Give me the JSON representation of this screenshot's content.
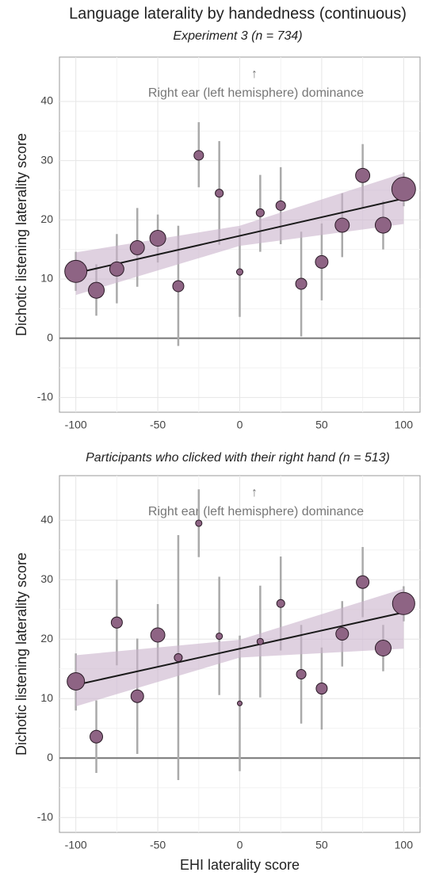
{
  "chart_data": [
    {
      "type": "scatter",
      "title": "Language laterality by handedness (continuous)",
      "subtitle": "Experiment 3 (n = 734)",
      "ylabel": "Dichotic listening laterality score",
      "annotation": "Right ear (left hemisphere) dominance",
      "annotation_arrow": "↑",
      "x": [
        -100,
        -87.5,
        -75,
        -62.5,
        -50,
        -37.5,
        -25,
        -12.5,
        0,
        12.5,
        25,
        37.5,
        50,
        62.5,
        75,
        87.5,
        100
      ],
      "values": [
        11.3,
        8.1,
        11.7,
        15.3,
        16.9,
        8.8,
        30.9,
        24.5,
        11.2,
        21.2,
        22.4,
        9.2,
        12.9,
        19.1,
        27.5,
        19.1,
        25.2
      ],
      "lower": [
        8,
        3.8,
        5.9,
        8.7,
        12.8,
        -1.3,
        25.5,
        15.8,
        3.6,
        14.6,
        15.9,
        0.3,
        6.4,
        13.7,
        22.1,
        15,
        22.3
      ],
      "upper": [
        14.6,
        12.5,
        17.6,
        22,
        20.9,
        19,
        36.5,
        33.3,
        18.5,
        27.6,
        28.9,
        18,
        19.4,
        24.5,
        32.8,
        23.2,
        28
      ],
      "sizes": [
        107,
        55,
        44,
        44,
        55,
        27,
        20,
        14,
        9,
        14,
        20,
        27,
        35,
        44,
        44,
        55,
        123
      ],
      "color": "#8e6484",
      "fit": {
        "x": [
          -100,
          100
        ],
        "values": [
          11,
          23.6
        ],
        "band_x": [
          -100,
          0,
          100
        ],
        "band_lower": [
          7.3,
          15.6,
          19.3
        ],
        "band_upper": [
          14.5,
          19,
          27.9
        ],
        "color": "#1a1a1a",
        "band_color": "#c9b3cc"
      },
      "hline": 0,
      "xlim": [
        -110,
        110
      ],
      "ylim": [
        -12.5,
        47.5
      ],
      "xticks": [
        -100,
        -50,
        0,
        50,
        100
      ],
      "yticks": [
        -10,
        0,
        10,
        20,
        30,
        40
      ],
      "grid": true
    },
    {
      "type": "scatter",
      "title": "Participants who clicked with their right hand (n = 513)",
      "ylabel": "Dichotic listening laterality score",
      "xlabel": "EHI laterality score",
      "annotation": "Right ear (left hemisphere) dominance",
      "annotation_arrow": "↑",
      "x": [
        -100,
        -87.5,
        -75,
        -62.5,
        -50,
        -37.5,
        -25,
        -12.5,
        0,
        12.5,
        25,
        37.5,
        50,
        62.5,
        75,
        87.5,
        100
      ],
      "values": [
        12.9,
        3.6,
        22.8,
        10.4,
        20.7,
        16.9,
        39.5,
        20.5,
        9.2,
        19.6,
        26,
        14.1,
        11.7,
        20.9,
        29.6,
        18.5,
        26
      ],
      "lower": [
        8,
        -2.5,
        15.6,
        0.7,
        15.5,
        -3.7,
        33.8,
        10.6,
        -2.2,
        10.2,
        18.1,
        5.8,
        4.8,
        15.4,
        23.7,
        14.6,
        23
      ],
      "upper": [
        17.6,
        9.7,
        30,
        20.1,
        25.9,
        37.5,
        45.2,
        30.5,
        20.6,
        29,
        33.9,
        22.4,
        18.6,
        26.4,
        35.5,
        22.4,
        28.9
      ],
      "sizes": [
        66,
        35,
        27,
        35,
        44,
        14,
        9,
        9,
        5,
        9,
        14,
        20,
        27,
        35,
        35,
        55,
        108
      ],
      "color": "#8e6484",
      "fit": {
        "x": [
          -100,
          100
        ],
        "values": [
          12.3,
          24.5
        ],
        "band_x": [
          -100,
          0,
          100
        ],
        "band_lower": [
          8.7,
          16.9,
          18.4
        ],
        "band_upper": [
          17.3,
          19.9,
          28.5
        ],
        "color": "#1a1a1a",
        "band_color": "#c9b3cc"
      },
      "hline": 0,
      "xlim": [
        -110,
        110
      ],
      "ylim": [
        -12.5,
        47.5
      ],
      "xticks": [
        -100,
        -50,
        0,
        50,
        100
      ],
      "yticks": [
        -10,
        0,
        10,
        20,
        30,
        40
      ],
      "grid": true
    }
  ]
}
